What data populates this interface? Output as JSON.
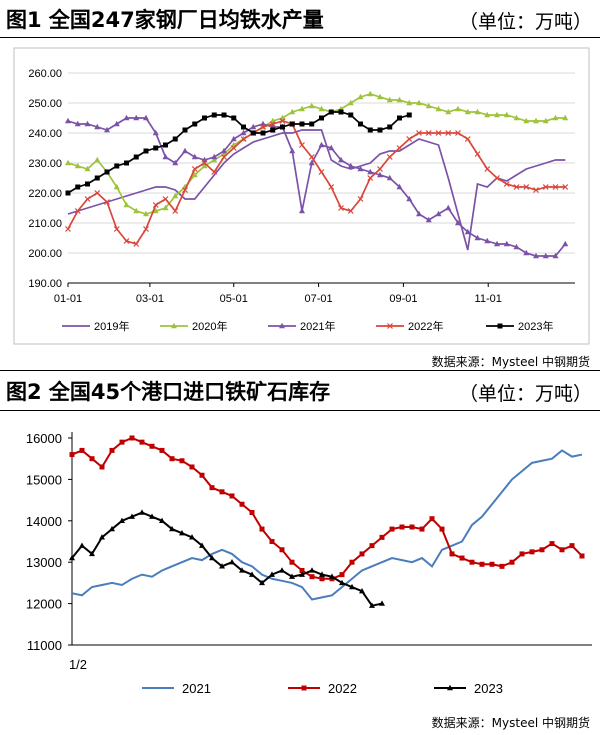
{
  "figure1": {
    "title": "图1 全国247家钢厂日均铁水产量",
    "unit": "（单位：万吨）",
    "source": "数据来源：Mysteel 中钢期货"
  },
  "figure2": {
    "title": "图2 全国45个港口进口铁矿石库存",
    "unit": "（单位：万吨）",
    "source": "数据来源：Mysteel 中钢期货"
  },
  "chart_data": [
    {
      "type": "line",
      "title": "全国247家钢厂日均铁水产量",
      "xlabel": "",
      "ylabel": "",
      "x_tick_labels": [
        "01-01",
        "03-01",
        "05-01",
        "07-01",
        "09-01",
        "11-01"
      ],
      "x_tick_weeks": [
        0,
        8.4,
        17,
        25.7,
        34.4,
        43.1
      ],
      "y_tick_labels": [
        "190.00",
        "200.00",
        "210.00",
        "220.00",
        "230.00",
        "240.00",
        "250.00",
        "260.00"
      ],
      "ylim": [
        190,
        260
      ],
      "xlim_weeks": [
        0,
        52
      ],
      "grid": "horizontal",
      "legend_position": "bottom",
      "series": [
        {
          "name": "2019年",
          "color": "#7b52a8",
          "marker": "none",
          "values": [
            213,
            214,
            215,
            216,
            217,
            218,
            219,
            220,
            221,
            222,
            222,
            221,
            218,
            218,
            222,
            226,
            230,
            233,
            235,
            237,
            238,
            239,
            240,
            240,
            241,
            241,
            241,
            231,
            229,
            228,
            229,
            230,
            233,
            234,
            234,
            236,
            238,
            237,
            236,
            225,
            213,
            201,
            223,
            222,
            225,
            224,
            226,
            228,
            229,
            230,
            231,
            231
          ]
        },
        {
          "name": "2020年",
          "color": "#9dc33b",
          "marker": "triangle",
          "values": [
            230,
            229,
            228,
            231,
            227,
            222,
            216,
            214,
            213,
            214,
            215,
            219,
            222,
            226,
            229,
            231,
            233,
            236,
            238,
            240,
            242,
            244,
            245,
            247,
            248,
            249,
            248,
            247,
            248,
            250,
            252,
            253,
            252,
            251,
            251,
            250,
            250,
            249,
            248,
            247,
            248,
            247,
            247,
            246,
            246,
            246,
            245,
            244,
            244,
            244,
            245,
            245
          ]
        },
        {
          "name": "2021年",
          "color": "#7b52a8",
          "marker": "triangle",
          "values": [
            244,
            243,
            243,
            242,
            241,
            243,
            245,
            245,
            245,
            240,
            232,
            230,
            234,
            232,
            231,
            232,
            234,
            238,
            240,
            242,
            243,
            242,
            242,
            234,
            214,
            230,
            236,
            235,
            231,
            229,
            228,
            227,
            226,
            225,
            222,
            218,
            213,
            211,
            213,
            215,
            210,
            207,
            205,
            204,
            203,
            203,
            202,
            200,
            199,
            199,
            199,
            203
          ]
        },
        {
          "name": "2022年",
          "color": "#d9463a",
          "marker": "x",
          "values": [
            208,
            214,
            218,
            220,
            217,
            208,
            204,
            203,
            208,
            216,
            218,
            214,
            221,
            228,
            230,
            227,
            232,
            235,
            238,
            240,
            242,
            243,
            244,
            243,
            236,
            232,
            227,
            222,
            215,
            214,
            218,
            225,
            228,
            232,
            235,
            238,
            240,
            240,
            240,
            240,
            240,
            238,
            233,
            228,
            225,
            223,
            222,
            222,
            221,
            222,
            222,
            222
          ]
        },
        {
          "name": "2023年",
          "color": "#000000",
          "marker": "square",
          "values": [
            220,
            222,
            223,
            225,
            227,
            229,
            230,
            232,
            234,
            235,
            236,
            238,
            241,
            243,
            245,
            246,
            246,
            245,
            242,
            240,
            240,
            241,
            242,
            243,
            243,
            243,
            245,
            247,
            247,
            246,
            243,
            241,
            241,
            242,
            245,
            246
          ]
        }
      ]
    },
    {
      "type": "line",
      "title": "全国45个港口进口铁矿石库存",
      "xlabel": "",
      "ylabel": "",
      "x_tick_labels": [
        "1/2"
      ],
      "y_tick_labels": [
        "11000",
        "12000",
        "13000",
        "14000",
        "15000",
        "16000"
      ],
      "ylim": [
        11000,
        16000
      ],
      "xlim_weeks": [
        0,
        52
      ],
      "grid": "none",
      "legend_position": "bottom",
      "series": [
        {
          "name": "2021",
          "color": "#4a7dbd",
          "marker": "none",
          "values": [
            12250,
            12200,
            12400,
            12450,
            12500,
            12450,
            12600,
            12700,
            12650,
            12800,
            12900,
            13000,
            13100,
            13050,
            13200,
            13300,
            13200,
            13000,
            12900,
            12700,
            12600,
            12550,
            12500,
            12400,
            12100,
            12150,
            12200,
            12400,
            12600,
            12800,
            12900,
            13000,
            13100,
            13050,
            13000,
            13100,
            12900,
            13300,
            13400,
            13500,
            13900,
            14100,
            14400,
            14700,
            15000,
            15200,
            15400,
            15450,
            15500,
            15700,
            15550,
            15600
          ]
        },
        {
          "name": "2022",
          "color": "#c00000",
          "marker": "square",
          "values": [
            15600,
            15700,
            15500,
            15300,
            15700,
            15900,
            16000,
            15900,
            15800,
            15700,
            15500,
            15450,
            15300,
            15100,
            14800,
            14700,
            14600,
            14400,
            14200,
            13800,
            13500,
            13300,
            13000,
            12800,
            12650,
            12600,
            12600,
            12700,
            13000,
            13200,
            13400,
            13600,
            13800,
            13850,
            13850,
            13800,
            14050,
            13800,
            13200,
            13100,
            13000,
            12950,
            12950,
            12900,
            13000,
            13200,
            13250,
            13300,
            13450,
            13300,
            13400,
            13150
          ]
        },
        {
          "name": "2023",
          "color": "#000000",
          "marker": "triangle",
          "values": [
            13100,
            13400,
            13200,
            13600,
            13800,
            14000,
            14100,
            14200,
            14100,
            14000,
            13800,
            13700,
            13600,
            13400,
            13100,
            12900,
            13000,
            12800,
            12700,
            12500,
            12700,
            12800,
            12650,
            12700,
            12800,
            12700,
            12650,
            12500,
            12400,
            12300,
            11950,
            12000
          ]
        }
      ]
    }
  ]
}
